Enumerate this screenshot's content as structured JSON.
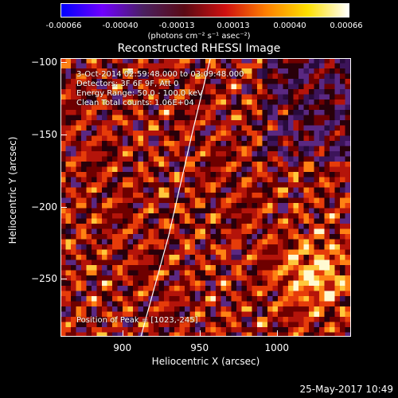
{
  "colorbar": {
    "ticks": [
      "-0.00066",
      "-0.00040",
      "-0.00013",
      "0.00013",
      "0.00040",
      "0.00066"
    ],
    "unit": "(photons cm⁻² s⁻¹ asec⁻²)",
    "stops": [
      "#0000ff",
      "#7000ff",
      "#4a2060",
      "#5a0a14",
      "#d01010",
      "#ff8000",
      "#ffe000",
      "#ffffff"
    ]
  },
  "chart_data": {
    "type": "heatmap",
    "title": "Reconstructed RHESSI Image",
    "xlabel": "Heliocentric X (arcsec)",
    "ylabel": "Heliocentric Y (arcsec)",
    "xlim": [
      860,
      1048
    ],
    "ylim": [
      -290,
      -97
    ],
    "xticks": [
      900,
      950,
      1000
    ],
    "yticks": [
      -100,
      -150,
      -200,
      -250
    ],
    "annotations": [
      "3-Oct-2014 02:59:48.000 to 03:09:48.000",
      "Detectors: 3F 6F 9F, Att 0",
      "Energy Range: 50.0 - 100.0 keV",
      "Clean    Total counts: 1.06E+04"
    ],
    "peak_label": "Position of Peak = [1023,-245]",
    "peak": [
      1023,
      -245
    ],
    "limb_curve": [
      [
        912,
        -290
      ],
      [
        930,
        -220
      ],
      [
        945,
        -150
      ],
      [
        957,
        -97
      ]
    ]
  },
  "datestamp": "25-May-2017 10:49"
}
